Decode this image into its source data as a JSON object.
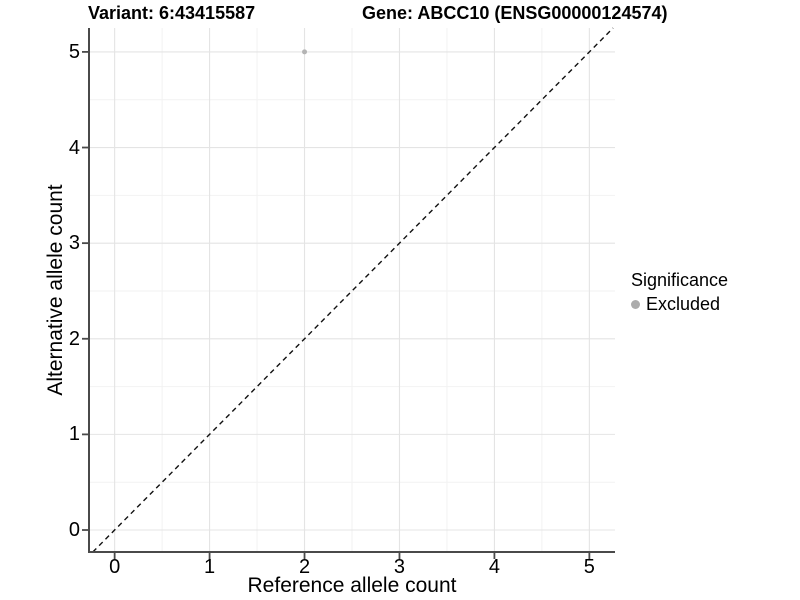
{
  "header": {
    "variant_title": "Variant: 6:43415587",
    "gene_title": "Gene: ABCC10 (ENSG00000124574)"
  },
  "chart_data": {
    "type": "scatter",
    "title": "Variant: 6:43415587    Gene: ABCC10 (ENSG00000124574)",
    "xlabel": "Reference allele count",
    "ylabel": "Alternative allele count",
    "x_ticks": [
      0,
      1,
      2,
      3,
      4,
      5
    ],
    "y_ticks": [
      0,
      1,
      2,
      3,
      4,
      5
    ],
    "xlim": [
      -0.27,
      5.27
    ],
    "ylim": [
      -0.23,
      5.25
    ],
    "grid": {
      "major": true,
      "minor": true
    },
    "points": [
      {
        "x": 2,
        "y": 5,
        "significance": "Excluded"
      }
    ],
    "point_color": "#b4b4b4",
    "identity_line": {
      "slope": 1,
      "intercept": 0,
      "style": "dashed",
      "color": "#111111"
    },
    "legend": {
      "title": "Significance",
      "position": "right",
      "entries": [
        {
          "label": "Excluded",
          "color": "#acacac"
        }
      ]
    },
    "colors": {
      "background": "#ffffff",
      "grid_major": "#e4e4e4",
      "grid_minor": "#f2f2f2",
      "axis": "#4a4a4a",
      "text": "#000000"
    }
  }
}
